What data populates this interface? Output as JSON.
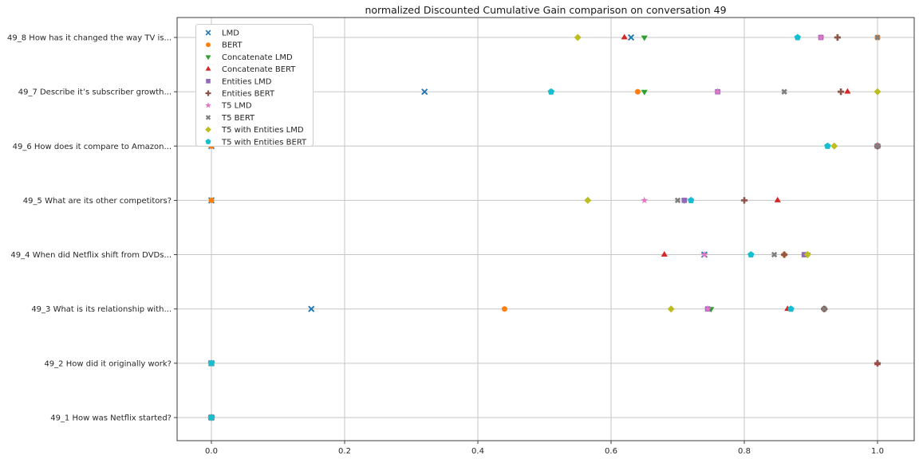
{
  "page": {
    "background": "#ffffff"
  },
  "chart_data": {
    "type": "scatter",
    "orientation": "horizontal_categorical",
    "title": "normalized Discounted Cumulative Gain comparison on conversation 49",
    "xlabel": "",
    "ylabel": "",
    "xlim": [
      -0.052,
      1.055
    ],
    "x_ticks": [
      0.0,
      0.2,
      0.4,
      0.6,
      0.8,
      1.0
    ],
    "x_tick_labels": [
      "0.0",
      "0.2",
      "0.4",
      "0.6",
      "0.8",
      "1.0"
    ],
    "grid": true,
    "grid_color": "#c6c6c6",
    "axis_color": "#3c3c3c",
    "tick_label_color": "#262626",
    "legend_position": "upper left",
    "categories_top_to_bottom": [
      "49_8 How has it changed the way TV is...",
      "49_7 Describe it’s subscriber growth...",
      "49_6 How does it compare to Amazon...",
      "49_5 What are its other competitors?",
      "49_4 When did Netflix shift from DVDs...",
      "49_3 What is its relationship with...",
      "49_2 How did it originally work?",
      "49_1 How was Netflix started?"
    ],
    "series": [
      {
        "name": "LMD",
        "marker": "x",
        "color": "#1f77b4",
        "values": [
          0.63,
          0.32,
          0.0,
          0.0,
          0.74,
          0.15,
          0.0,
          0.0
        ]
      },
      {
        "name": "BERT",
        "marker": "circle",
        "color": "#ff7f0e",
        "values": [
          1.0,
          0.64,
          0.0,
          0.0,
          0.86,
          0.44,
          0.0,
          0.0
        ]
      },
      {
        "name": "Concatenate LMD",
        "marker": "triangle_down",
        "color": "#2ca02c",
        "values": [
          0.65,
          0.65,
          1.0,
          0.71,
          0.895,
          0.75,
          0.0,
          0.0
        ]
      },
      {
        "name": "Concatenate BERT",
        "marker": "triangle_up",
        "color": "#d62728",
        "values": [
          0.62,
          0.955,
          1.0,
          0.85,
          0.68,
          0.865,
          1.0,
          0.0
        ]
      },
      {
        "name": "Entities LMD",
        "marker": "square",
        "color": "#9467bd",
        "values": [
          0.915,
          0.76,
          1.0,
          0.71,
          0.89,
          0.745,
          0.0,
          0.0
        ]
      },
      {
        "name": "Entities BERT",
        "marker": "plus_filled",
        "color": "#8c564b",
        "values": [
          0.94,
          0.945,
          1.0,
          0.8,
          0.86,
          0.92,
          1.0,
          0.0
        ]
      },
      {
        "name": "T5 LMD",
        "marker": "star",
        "color": "#e377c2",
        "values": [
          0.915,
          0.76,
          1.0,
          0.65,
          0.74,
          0.745,
          0.0,
          0.0
        ]
      },
      {
        "name": "T5 BERT",
        "marker": "x_filled",
        "color": "#7f7f7f",
        "values": [
          1.0,
          0.86,
          1.0,
          0.7,
          0.845,
          0.92,
          0.0,
          0.0
        ]
      },
      {
        "name": "T5 with Entities LMD",
        "marker": "diamond",
        "color": "#bcbd22",
        "values": [
          0.55,
          1.0,
          0.935,
          0.565,
          0.895,
          0.69,
          0.0,
          0.0
        ]
      },
      {
        "name": "T5 with Entities BERT",
        "marker": "pentagon",
        "color": "#17becf",
        "values": [
          0.88,
          0.51,
          0.925,
          0.72,
          0.81,
          0.87,
          0.0,
          0.0
        ]
      }
    ]
  }
}
